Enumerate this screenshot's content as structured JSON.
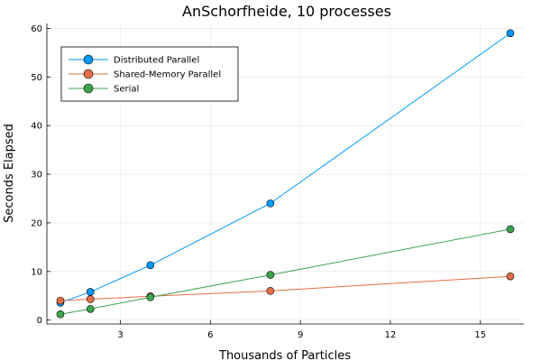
{
  "chart_data": {
    "type": "line",
    "title": "AnSchorfheide, 10 processes",
    "xlabel": "Thousands of Particles",
    "ylabel": "Seconds Elapsed",
    "xlim": [
      0.55,
      16.45
    ],
    "ylim": [
      -0.8,
      61
    ],
    "xticks": [
      3,
      6,
      9,
      12,
      15
    ],
    "yticks": [
      0,
      10,
      20,
      30,
      40,
      50,
      60
    ],
    "grid": true,
    "legend_position": "top-left",
    "x": [
      1,
      2,
      4,
      8,
      16
    ],
    "series": [
      {
        "name": "Distributed Parallel",
        "color": "#009AFA",
        "values": [
          3.6,
          5.8,
          11.3,
          24.0,
          59.0
        ]
      },
      {
        "name": "Shared-Memory Parallel",
        "color": "#E36F47",
        "values": [
          4.0,
          4.3,
          4.9,
          6.0,
          9.0
        ]
      },
      {
        "name": "Serial",
        "color": "#3EA44E",
        "values": [
          1.2,
          2.3,
          4.7,
          9.3,
          18.7
        ]
      }
    ]
  }
}
